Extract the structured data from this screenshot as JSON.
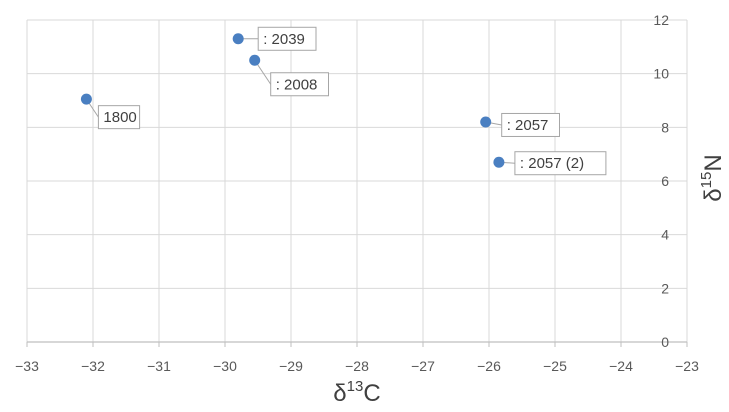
{
  "chart_data": {
    "type": "scatter",
    "title": "",
    "xlabel": {
      "prefix": "δ",
      "sup": "13",
      "suffix": "C"
    },
    "ylabel": {
      "prefix": "δ",
      "sup": "15",
      "suffix": "N"
    },
    "xlim": [
      -33,
      -23
    ],
    "ylim": [
      0,
      12
    ],
    "xticks": [
      -33,
      -32,
      -31,
      -30,
      -29,
      -28,
      -27,
      -26,
      -25,
      -24,
      -23
    ],
    "xtick_labels": [
      "−33",
      "−32",
      "−31",
      "−30",
      "−29",
      "−28",
      "−27",
      "−26",
      "−25",
      "−24",
      "−23"
    ],
    "yticks": [
      0,
      2,
      4,
      6,
      8,
      10,
      12
    ],
    "ytick_labels": [
      "0",
      "2",
      "4",
      "6",
      "8",
      "10",
      "12"
    ],
    "grid": true,
    "legend": false,
    "y_axis_side": "right",
    "marker_color": "#4a7fc1",
    "points": [
      {
        "x": -32.1,
        "y": 9.05,
        "label": "1800"
      },
      {
        "x": -29.8,
        "y": 11.3,
        "label": ": 2039"
      },
      {
        "x": -29.55,
        "y": 10.5,
        "label": ": 2008"
      },
      {
        "x": -26.05,
        "y": 8.2,
        "label": ": 2057"
      },
      {
        "x": -25.85,
        "y": 6.7,
        "label": ": 2057 (2)"
      }
    ]
  }
}
